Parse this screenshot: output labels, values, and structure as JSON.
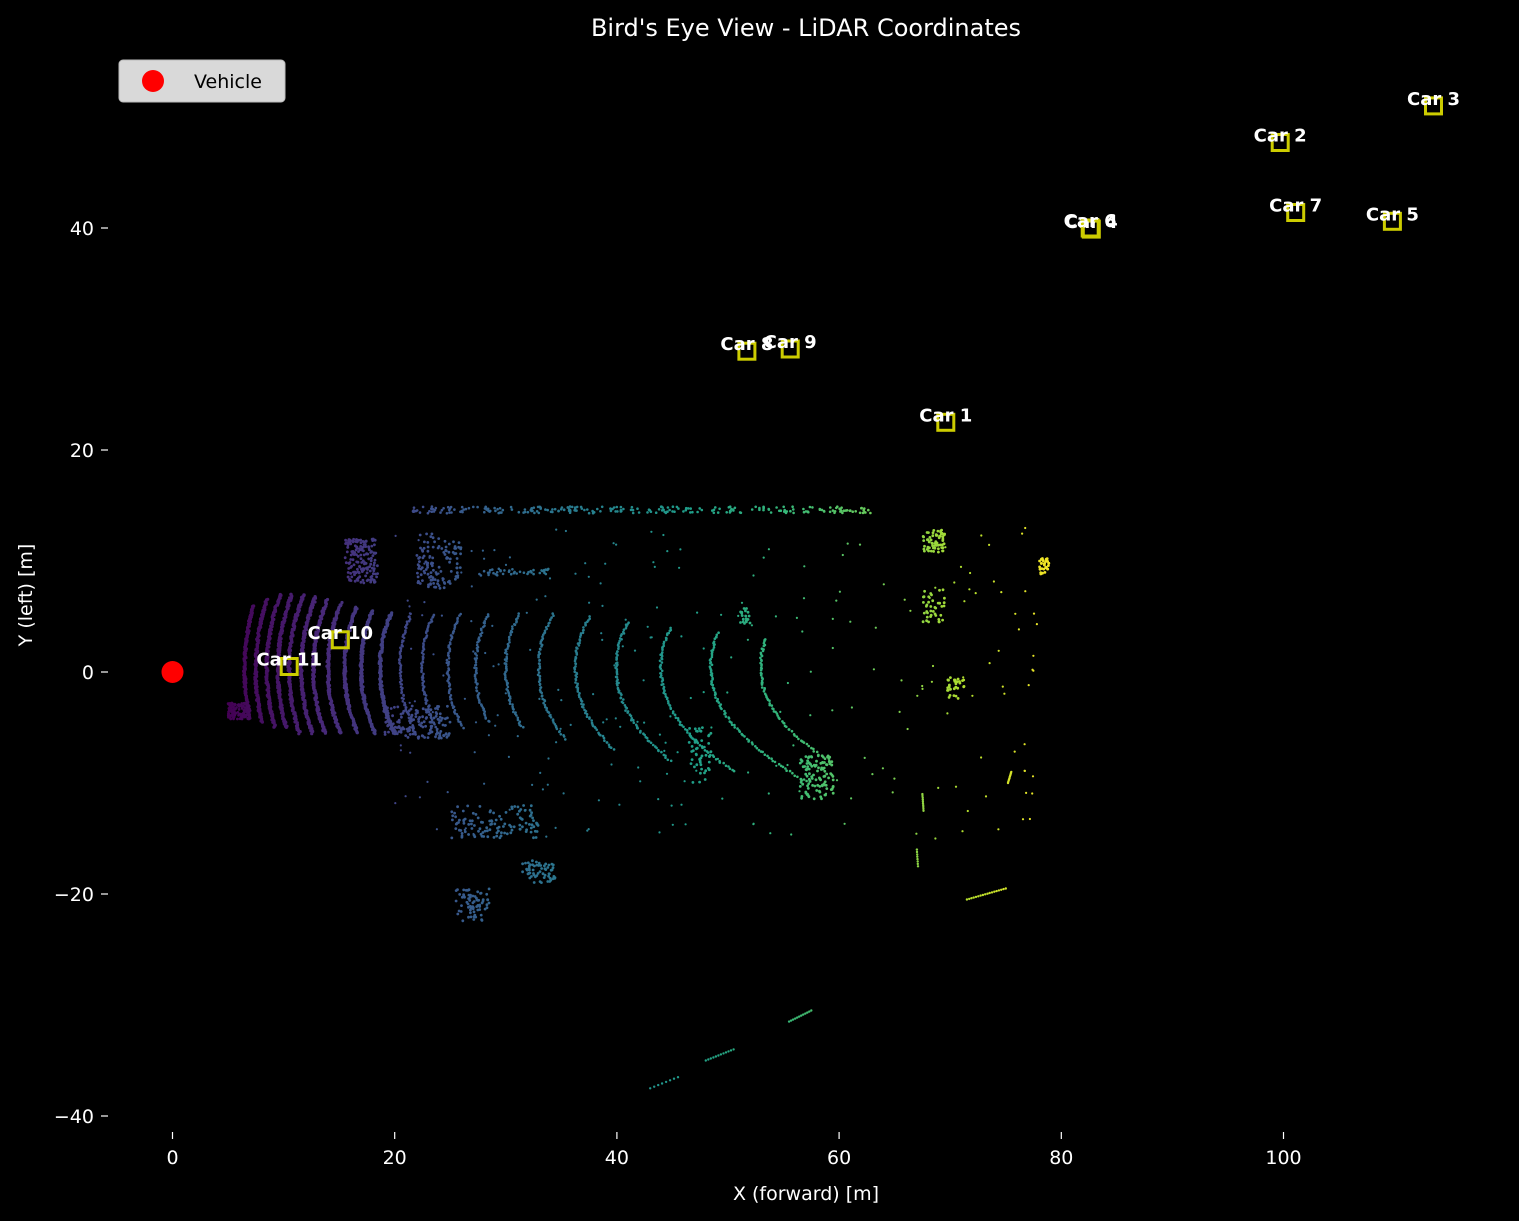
{
  "chart_data": {
    "type": "scatter",
    "title": "Bird's Eye View - LiDAR Coordinates",
    "xlabel": "X (forward) [m]",
    "ylabel": "Y (left) [m]",
    "xlim": [
      -5,
      121
    ],
    "ylim": [
      -42,
      58
    ],
    "x_ticks": [
      0,
      20,
      40,
      60,
      80,
      100
    ],
    "y_ticks": [
      -40,
      -20,
      0,
      20,
      40
    ],
    "x_tick_labels": [
      "0",
      "20",
      "40",
      "60",
      "80",
      "100"
    ],
    "y_tick_labels": [
      "−40",
      "−20",
      "0",
      "20",
      "40"
    ],
    "grid": false,
    "legend": {
      "position": "top-left",
      "entries": [
        {
          "name": "Vehicle",
          "color": "#ff0000"
        }
      ]
    },
    "background_color": "#000000",
    "colormap": "viridis",
    "vehicle": {
      "name": "Vehicle",
      "x": 0,
      "y": 0,
      "color": "#ff0000"
    },
    "cars": [
      {
        "label": "Car 1",
        "x": 69.6,
        "y": 22.5
      },
      {
        "label": "Car 2",
        "x": 99.7,
        "y": 47.7
      },
      {
        "label": "Car 3",
        "x": 113.5,
        "y": 51.0
      },
      {
        "label": "Car 4",
        "x": 82.7,
        "y": 39.9
      },
      {
        "label": "Car 5",
        "x": 109.8,
        "y": 40.6
      },
      {
        "label": "Car 6",
        "x": 82.6,
        "y": 40.0
      },
      {
        "label": "Car 7",
        "x": 101.1,
        "y": 41.4
      },
      {
        "label": "Car 8",
        "x": 51.7,
        "y": 28.9
      },
      {
        "label": "Car 9",
        "x": 55.6,
        "y": 29.1
      },
      {
        "label": "Car 10",
        "x": 15.1,
        "y": 2.9
      },
      {
        "label": "Car 11",
        "x": 10.5,
        "y": 0.5
      }
    ],
    "box_color": "#cccc00",
    "point_cloud": {
      "description_colored_by": "x",
      "color_range": [
        5,
        80
      ],
      "arcs": [
        {
          "x": 6.5,
          "y_min": -4,
          "y_max": 6
        },
        {
          "x": 7.5,
          "y_min": -4.5,
          "y_max": 6.5
        },
        {
          "x": 8.5,
          "y_min": -5,
          "y_max": 7
        },
        {
          "x": 9.5,
          "y_min": -5,
          "y_max": 7
        },
        {
          "x": 10.5,
          "y_min": -5.5,
          "y_max": 7
        },
        {
          "x": 11.6,
          "y_min": -5.5,
          "y_max": 6.8
        },
        {
          "x": 12.7,
          "y_min": -5.5,
          "y_max": 6.5
        },
        {
          "x": 14,
          "y_min": -5.5,
          "y_max": 6.2
        },
        {
          "x": 15.5,
          "y_min": -5.5,
          "y_max": 5.8
        },
        {
          "x": 17,
          "y_min": -5.5,
          "y_max": 5.5
        },
        {
          "x": 18.7,
          "y_min": -5.5,
          "y_max": 5.3
        },
        {
          "x": 20.5,
          "y_min": -5.5,
          "y_max": 5.2
        },
        {
          "x": 22.5,
          "y_min": -5.5,
          "y_max": 5.2
        },
        {
          "x": 24.8,
          "y_min": -5,
          "y_max": 5.2
        },
        {
          "x": 27.3,
          "y_min": -4.5,
          "y_max": 5.2
        },
        {
          "x": 30,
          "y_min": -5,
          "y_max": 5.2
        },
        {
          "x": 33,
          "y_min": -6,
          "y_max": 5.2
        },
        {
          "x": 36.3,
          "y_min": -7,
          "y_max": 5
        },
        {
          "x": 40,
          "y_min": -8,
          "y_max": 4.5
        },
        {
          "x": 44,
          "y_min": -9,
          "y_max": 4
        },
        {
          "x": 48.5,
          "y_min": -10,
          "y_max": 3.5
        },
        {
          "x": 53,
          "y_min": -8,
          "y_max": 3
        }
      ],
      "walls": [
        {
          "x_start": 21.5,
          "x_end": 63,
          "y": 14.6,
          "noise": 0.3
        },
        {
          "x_start": 27,
          "x_end": 34,
          "y": 9.0,
          "noise": 0.3
        }
      ],
      "clusters": [
        {
          "x": 6,
          "y": -3.5,
          "w": 2,
          "h": 1.5,
          "n": 120
        },
        {
          "x": 17,
          "y": 10,
          "w": 3,
          "h": 4,
          "n": 160
        },
        {
          "x": 24,
          "y": 10,
          "w": 4,
          "h": 5,
          "n": 120
        },
        {
          "x": 22,
          "y": -4.5,
          "w": 6,
          "h": 3,
          "n": 150
        },
        {
          "x": 29,
          "y": -13.5,
          "w": 8,
          "h": 3,
          "n": 120
        },
        {
          "x": 33,
          "y": -18,
          "w": 3,
          "h": 2,
          "n": 60
        },
        {
          "x": 27,
          "y": -21,
          "w": 3,
          "h": 3,
          "n": 70
        },
        {
          "x": 58,
          "y": -9.5,
          "w": 3,
          "h": 4,
          "n": 110
        },
        {
          "x": 68.5,
          "y": 11.8,
          "w": 2,
          "h": 2,
          "n": 60
        },
        {
          "x": 68.5,
          "y": 6,
          "w": 2,
          "h": 3,
          "n": 40
        },
        {
          "x": 70.5,
          "y": -1.5,
          "w": 1.5,
          "h": 2,
          "n": 30
        },
        {
          "x": 78.5,
          "y": 9.5,
          "w": 1,
          "h": 1.5,
          "n": 30
        },
        {
          "x": 47.5,
          "y": -7.5,
          "w": 2,
          "h": 5,
          "n": 50
        },
        {
          "x": 51.5,
          "y": 5,
          "w": 1,
          "h": 1.5,
          "n": 20
        }
      ],
      "segments": [
        {
          "x1": 55.5,
          "y1": -31.5,
          "x2": 57.5,
          "y2": -30.5,
          "n": 12
        },
        {
          "x1": 48,
          "y1": -35,
          "x2": 50.5,
          "y2": -34,
          "n": 12
        },
        {
          "x1": 71.5,
          "y1": -20.5,
          "x2": 75,
          "y2": -19.5,
          "n": 18
        },
        {
          "x1": 43,
          "y1": -37.5,
          "x2": 45.5,
          "y2": -36.5,
          "n": 8
        },
        {
          "x1": 75.5,
          "y1": -9,
          "x2": 75.2,
          "y2": -10,
          "n": 10
        },
        {
          "x1": 67.5,
          "y1": -11,
          "x2": 67.6,
          "y2": -12.5,
          "n": 10
        },
        {
          "x1": 67,
          "y1": -16,
          "x2": 67.1,
          "y2": -17.5,
          "n": 8
        }
      ]
    }
  }
}
